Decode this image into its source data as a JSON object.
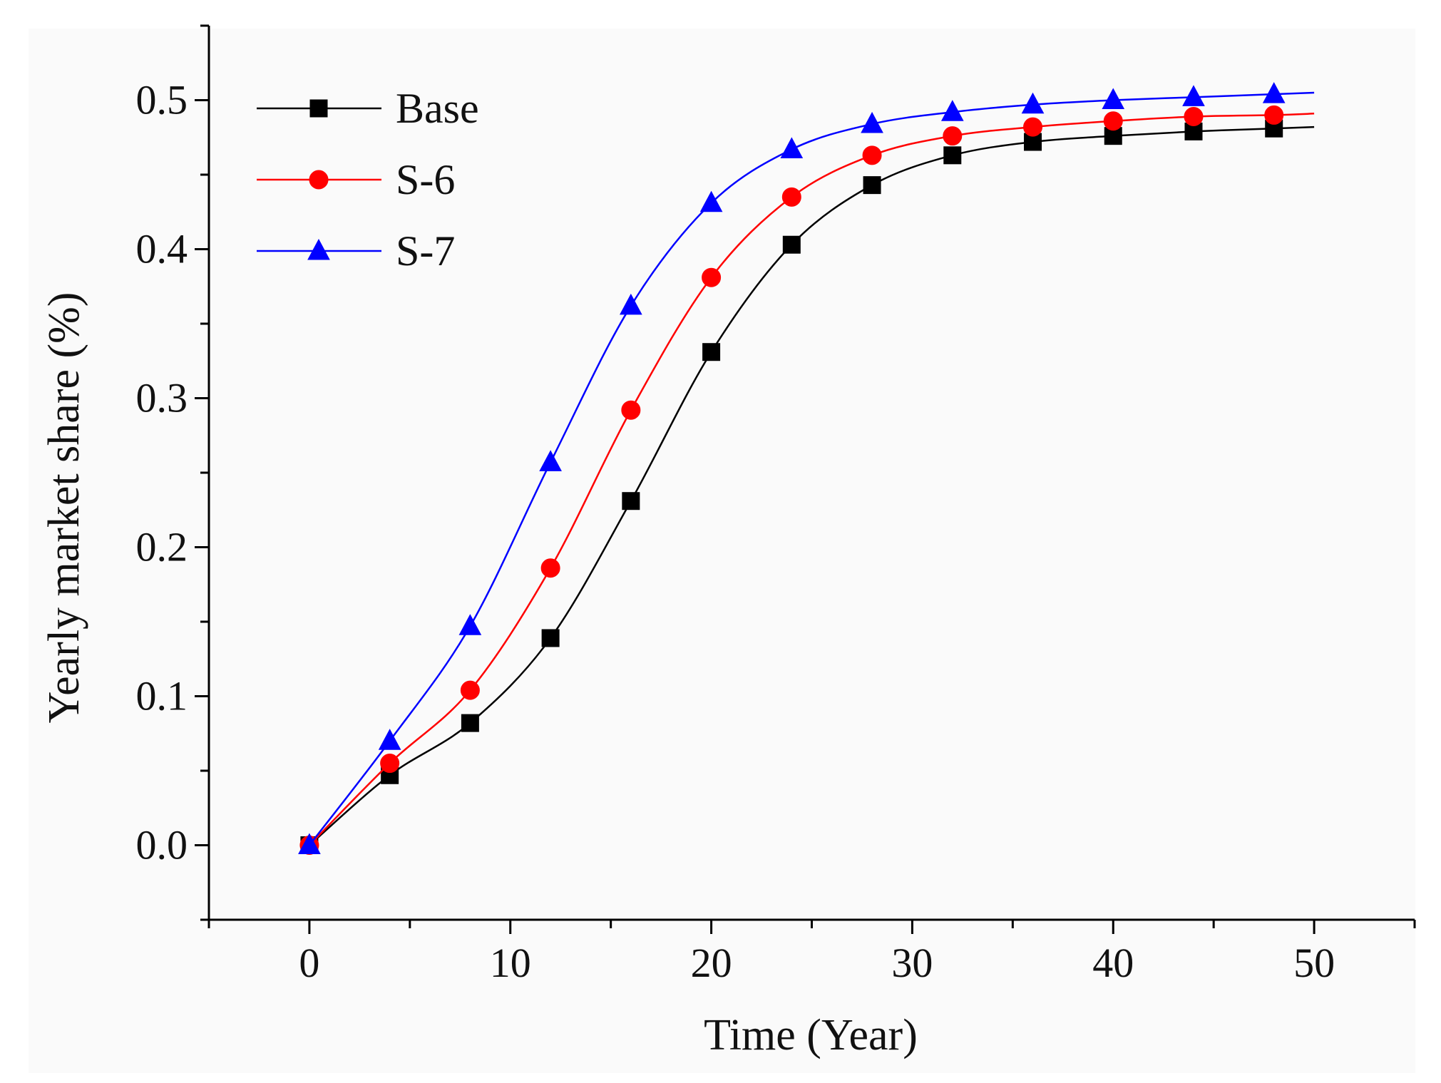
{
  "chart_data": {
    "type": "line",
    "title": "",
    "xlabel": "Time (Year)",
    "ylabel": "Yearly market share (%)",
    "xlim": [
      -5,
      55
    ],
    "ylim": [
      -0.05,
      0.55
    ],
    "xticks": [
      0,
      10,
      20,
      30,
      40,
      50
    ],
    "yticks": [
      0.0,
      0.1,
      0.2,
      0.3,
      0.4,
      0.5
    ],
    "ytick_labels": [
      "0.0",
      "0.1",
      "0.2",
      "0.3",
      "0.4",
      "0.5"
    ],
    "legend_position": "top-left",
    "x": [
      0,
      4,
      8,
      12,
      16,
      20,
      24,
      28,
      32,
      36,
      40,
      44,
      48
    ],
    "series": [
      {
        "name": "Base",
        "color": "#000000",
        "marker": "square",
        "values": [
          0.0,
          0.047,
          0.082,
          0.139,
          0.231,
          0.331,
          0.403,
          0.443,
          0.463,
          0.472,
          0.476,
          0.479,
          0.481
        ],
        "end_value": 0.482
      },
      {
        "name": "S-6",
        "color": "#ff0000",
        "marker": "circle",
        "values": [
          0.0,
          0.055,
          0.104,
          0.186,
          0.292,
          0.381,
          0.435,
          0.463,
          0.476,
          0.482,
          0.486,
          0.489,
          0.49
        ],
        "end_value": 0.491
      },
      {
        "name": "S-7",
        "color": "#0000ff",
        "marker": "triangle",
        "values": [
          0.0,
          0.07,
          0.147,
          0.257,
          0.362,
          0.431,
          0.467,
          0.484,
          0.492,
          0.497,
          0.5,
          0.502,
          0.504
        ],
        "end_value": 0.505
      }
    ]
  }
}
